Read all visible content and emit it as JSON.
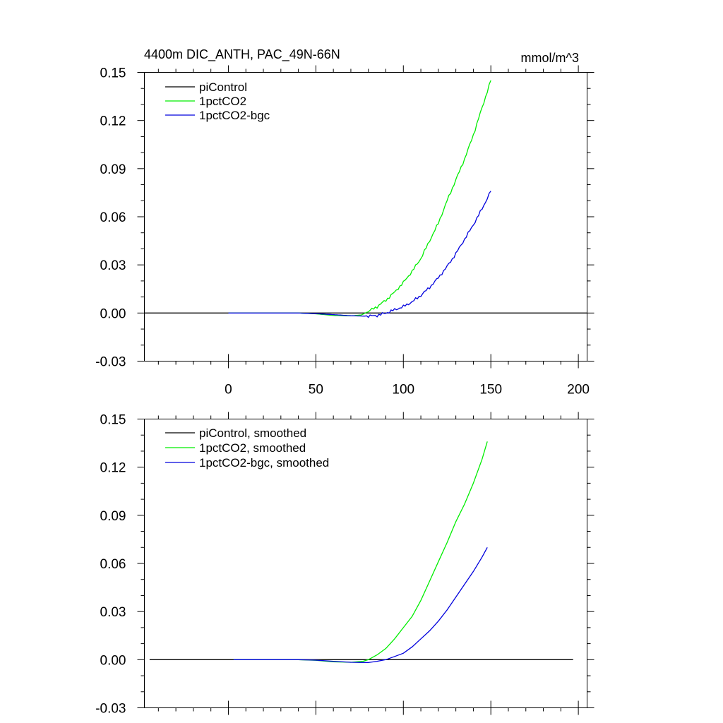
{
  "chart_data": [
    {
      "type": "line",
      "title_left": "4400m DIC_ANTH, PAC_49N-66N",
      "title_right": "mmol/m^3",
      "xlabel": "",
      "ylabel": "",
      "xlim": [
        -48,
        205
      ],
      "ylim": [
        -0.03,
        0.15
      ],
      "xticks": [
        0,
        50,
        100,
        150,
        200
      ],
      "xtick_labels": [
        "0",
        "50",
        "100",
        "150",
        "200"
      ],
      "yticks": [
        -0.03,
        0.0,
        0.03,
        0.06,
        0.09,
        0.12,
        0.15
      ],
      "ytick_labels": [
        "-0.03",
        "0.00",
        "0.03",
        "0.06",
        "0.09",
        "0.12",
        "0.15"
      ],
      "show_xtick_labels": true,
      "grid": false,
      "legend_position": "top-left",
      "series": [
        {
          "name": "piControl",
          "color": "#000000",
          "x": [
            -48,
            205
          ],
          "y": [
            0.0,
            0.0
          ]
        },
        {
          "name": "1pctCO2",
          "color": "#00ee00",
          "jitter": true,
          "x": [
            0,
            40,
            50,
            60,
            70,
            76,
            80,
            85,
            90,
            95,
            100,
            105,
            110,
            115,
            120,
            125,
            130,
            135,
            140,
            145,
            150
          ],
          "y": [
            0.0,
            0.0,
            -0.0005,
            -0.0015,
            -0.0018,
            -0.0012,
            0.001,
            0.004,
            0.008,
            0.013,
            0.019,
            0.026,
            0.034,
            0.045,
            0.056,
            0.07,
            0.083,
            0.096,
            0.111,
            0.128,
            0.145
          ]
        },
        {
          "name": "1pctCO2-bgc",
          "color": "#0000dd",
          "jitter": true,
          "x": [
            0,
            40,
            50,
            60,
            70,
            80,
            85,
            90,
            95,
            100,
            105,
            110,
            115,
            120,
            125,
            130,
            135,
            140,
            145,
            150
          ],
          "y": [
            0.0,
            0.0,
            -0.0004,
            -0.001,
            -0.0017,
            -0.002,
            -0.0015,
            0.0,
            0.002,
            0.004,
            0.007,
            0.011,
            0.016,
            0.022,
            0.029,
            0.037,
            0.046,
            0.055,
            0.065,
            0.076
          ]
        }
      ]
    },
    {
      "type": "line",
      "title_left": "",
      "title_right": "",
      "xlabel": "",
      "ylabel": "",
      "xlim": [
        -48,
        205
      ],
      "ylim": [
        -0.03,
        0.15
      ],
      "xticks": [
        0,
        50,
        100,
        150,
        200
      ],
      "xtick_labels": [
        "0",
        "50",
        "100",
        "150",
        "200"
      ],
      "yticks": [
        -0.03,
        0.0,
        0.03,
        0.06,
        0.09,
        0.12,
        0.15
      ],
      "ytick_labels": [
        "-0.03",
        "0.00",
        "0.03",
        "0.06",
        "0.09",
        "0.12",
        "0.15"
      ],
      "show_xtick_labels": false,
      "grid": false,
      "legend_position": "top-left",
      "series": [
        {
          "name": "piControl, smoothed",
          "color": "#000000",
          "x": [
            -45,
            197
          ],
          "y": [
            0.0,
            0.0
          ]
        },
        {
          "name": "1pctCO2, smoothed",
          "color": "#00ee00",
          "x": [
            3,
            40,
            50,
            60,
            70,
            77,
            80,
            85,
            90,
            95,
            100,
            105,
            110,
            115,
            120,
            125,
            130,
            135,
            140,
            145,
            148
          ],
          "y": [
            0.0,
            0.0,
            -0.0004,
            -0.0013,
            -0.0016,
            -0.001,
            0.0,
            0.003,
            0.007,
            0.013,
            0.02,
            0.027,
            0.037,
            0.049,
            0.061,
            0.073,
            0.086,
            0.097,
            0.11,
            0.125,
            0.136
          ]
        },
        {
          "name": "1pctCO2-bgc, smoothed",
          "color": "#0000dd",
          "x": [
            3,
            40,
            50,
            60,
            70,
            80,
            85,
            90,
            95,
            100,
            105,
            110,
            115,
            120,
            125,
            130,
            135,
            140,
            145,
            148
          ],
          "y": [
            0.0,
            0.0,
            -0.0003,
            -0.001,
            -0.0016,
            -0.0018,
            -0.001,
            0.0,
            0.002,
            0.004,
            0.008,
            0.013,
            0.018,
            0.024,
            0.031,
            0.039,
            0.047,
            0.055,
            0.064,
            0.07
          ]
        }
      ]
    }
  ]
}
